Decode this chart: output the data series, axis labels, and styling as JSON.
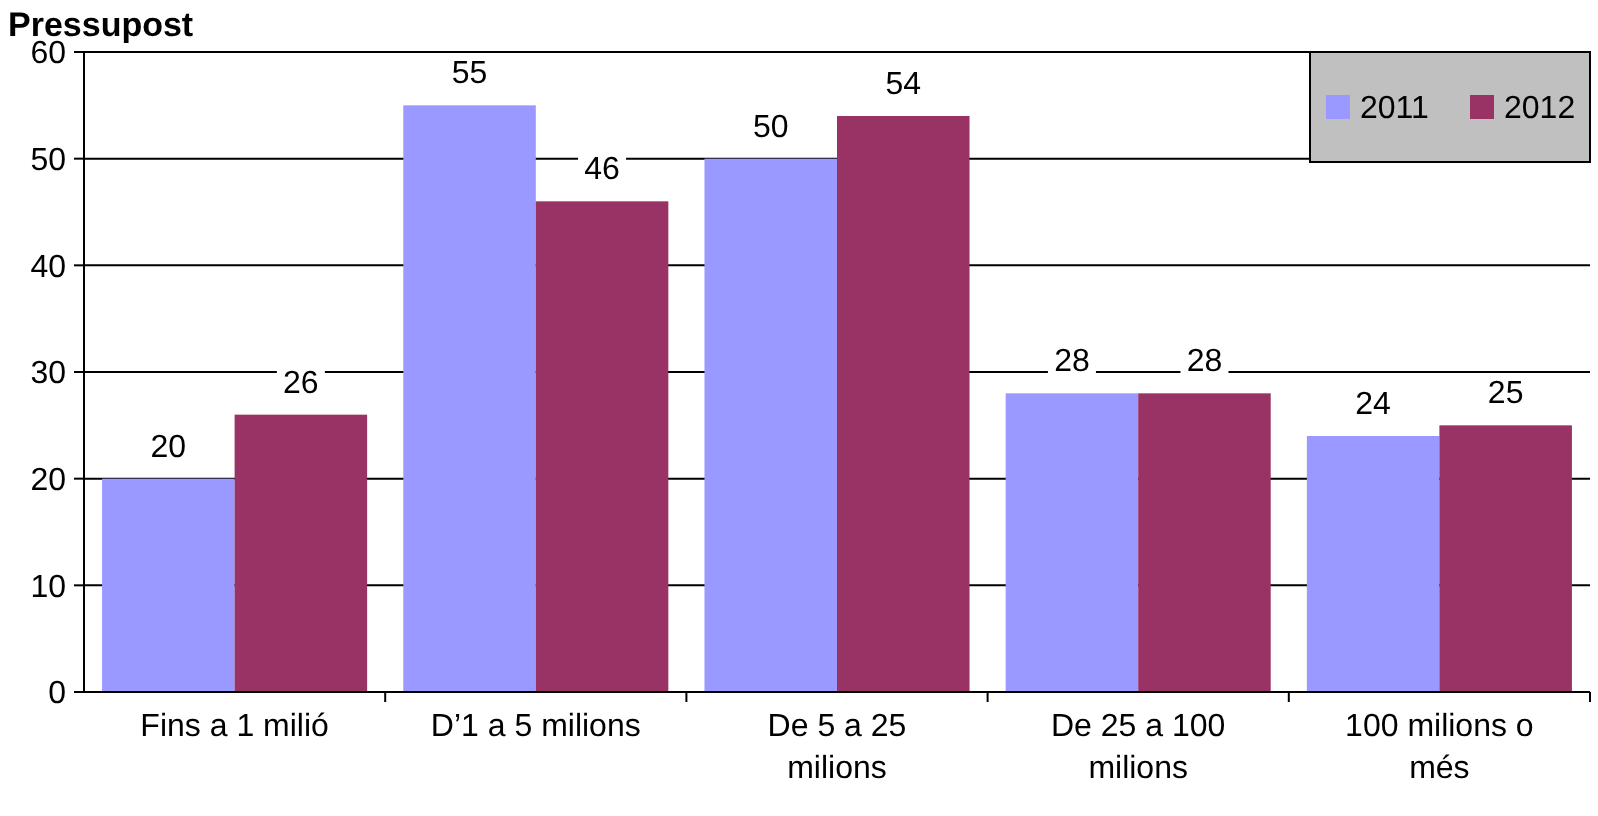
{
  "chart_data": {
    "type": "bar",
    "title": "Pressupost",
    "categories": [
      "Fins a 1 milió",
      "D’1 a 5 milions",
      "De 5 a 25 milions",
      "De 25 a 100 milions",
      "100 milions o més"
    ],
    "series": [
      {
        "name": "2011",
        "color": "#9999ff",
        "values": [
          20,
          55,
          50,
          28,
          24
        ]
      },
      {
        "name": "2012",
        "color": "#993366",
        "values": [
          26,
          46,
          54,
          28,
          25
        ]
      }
    ],
    "ylim": [
      0,
      60
    ],
    "yticks": [
      0,
      10,
      20,
      30,
      40,
      50,
      60
    ],
    "grid": "y",
    "legend": "top right",
    "data_labels": true
  }
}
